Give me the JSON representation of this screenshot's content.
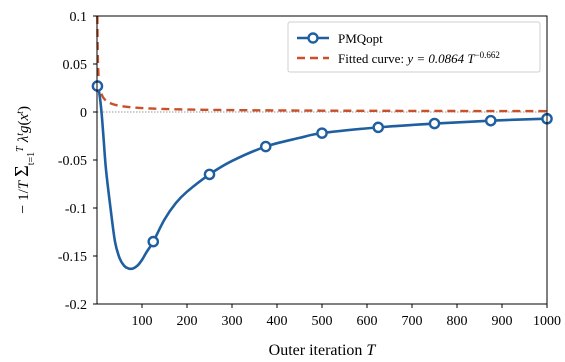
{
  "chart_data": {
    "type": "line",
    "xlabel": "Outer iteration T",
    "ylabel": "−(1/T) Σ_{t=1}^{T} λᵗ g(xᵗ)",
    "xlim": [
      0,
      1000
    ],
    "ylim": [
      -0.2,
      0.1
    ],
    "x_ticks": [
      100,
      200,
      300,
      400,
      500,
      600,
      700,
      800,
      900,
      1000
    ],
    "y_ticks": [
      0.1,
      0.05,
      0,
      -0.05,
      -0.1,
      -0.15,
      -0.2
    ],
    "y_tick_labels": [
      "0.1",
      "0.05",
      "0",
      "-0.05",
      "-0.1",
      "-0.15",
      "-0.2"
    ],
    "x_tick_labels": [
      "100",
      "200",
      "300",
      "400",
      "500",
      "600",
      "700",
      "800",
      "900",
      "1000"
    ],
    "reference_lines": [
      0,
      -0.2
    ],
    "legend_position": "top-right",
    "series": [
      {
        "name": "PMQopt",
        "style": "solid line with circle markers",
        "color": "#1f5fa0",
        "curve": {
          "x": [
            1,
            5,
            10,
            15,
            20,
            30,
            40,
            50,
            60,
            70,
            80,
            90,
            100,
            110,
            125,
            150,
            175,
            200,
            250,
            300,
            375,
            450,
            500,
            625,
            750,
            875,
            1000
          ],
          "y": [
            0.027,
            0.02,
            0.0,
            -0.03,
            -0.06,
            -0.1,
            -0.135,
            -0.152,
            -0.16,
            -0.163,
            -0.163,
            -0.16,
            -0.154,
            -0.146,
            -0.135,
            -0.112,
            -0.095,
            -0.083,
            -0.065,
            -0.051,
            -0.036,
            -0.027,
            -0.022,
            -0.016,
            -0.012,
            -0.009,
            -0.007
          ]
        },
        "markers": {
          "x": [
            1,
            125,
            250,
            375,
            500,
            625,
            750,
            875,
            1000
          ],
          "y": [
            0.027,
            -0.135,
            -0.065,
            -0.036,
            -0.022,
            -0.016,
            -0.012,
            -0.009,
            -0.007
          ]
        }
      },
      {
        "name": "Fitted curve: y = 0.0864 T^−0.662",
        "name_prefix": "Fitted curve: ",
        "name_formula": "y = 0.0864 T",
        "name_exponent": "−0.662",
        "style": "dashed",
        "color": "#c8502a",
        "coefficient": 0.0864,
        "exponent": -0.662
      }
    ]
  },
  "colors": {
    "pmq": "#1f5fa0",
    "fit": "#c8502a",
    "reference": "#9a9a9a"
  }
}
